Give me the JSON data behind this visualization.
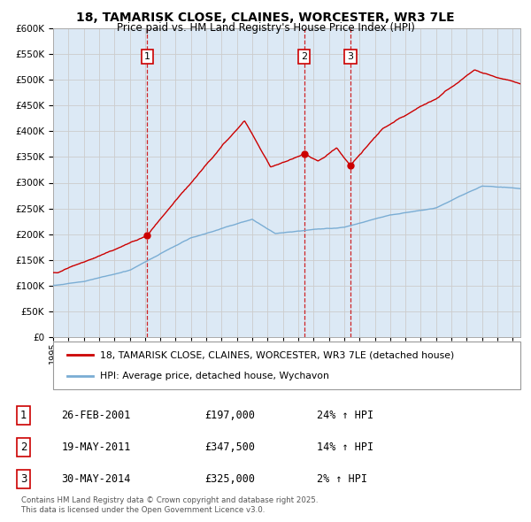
{
  "title": "18, TAMARISK CLOSE, CLAINES, WORCESTER, WR3 7LE",
  "subtitle": "Price paid vs. HM Land Registry's House Price Index (HPI)",
  "ylim": [
    0,
    600000
  ],
  "yticks": [
    0,
    50000,
    100000,
    150000,
    200000,
    250000,
    300000,
    350000,
    400000,
    450000,
    500000,
    550000,
    600000
  ],
  "xlim_start": 1995.0,
  "xlim_end": 2025.5,
  "sales": [
    {
      "label": "1",
      "date_x": 2001.15,
      "price": 197000,
      "pct": "24%",
      "date_str": "26-FEB-2001"
    },
    {
      "label": "2",
      "date_x": 2011.38,
      "price": 347500,
      "pct": "14%",
      "date_str": "19-MAY-2011"
    },
    {
      "label": "3",
      "date_x": 2014.41,
      "price": 325000,
      "pct": "2%",
      "date_str": "30-MAY-2014"
    }
  ],
  "line_color_red": "#cc0000",
  "line_color_blue": "#7aadd4",
  "vline_color": "#cc0000",
  "grid_color": "#cccccc",
  "plot_bg": "#dce9f5",
  "background_color": "#ffffff",
  "legend_label_red": "18, TAMARISK CLOSE, CLAINES, WORCESTER, WR3 7LE (detached house)",
  "legend_label_blue": "HPI: Average price, detached house, Wychavon",
  "footer1": "Contains HM Land Registry data © Crown copyright and database right 2025.",
  "footer2": "This data is licensed under the Open Government Licence v3.0."
}
